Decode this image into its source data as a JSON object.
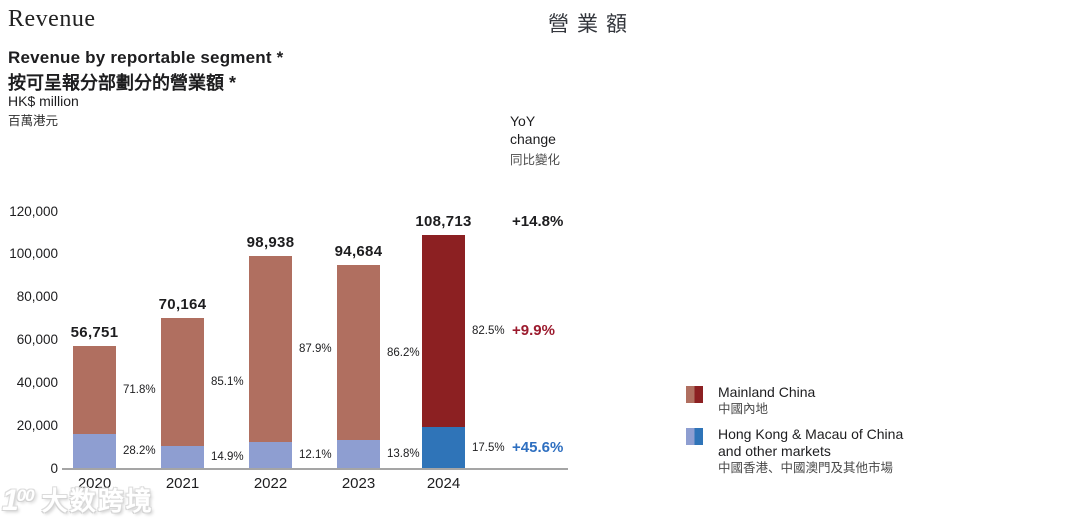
{
  "header": {
    "title_en": "Revenue",
    "title_zh": "營業額"
  },
  "chart_header": {
    "title_en": "Revenue by reportable segment *",
    "title_zh": "按可呈報分部劃分的營業額 *",
    "unit_en": "HK$ million",
    "unit_zh": "百萬港元"
  },
  "yoy_header": {
    "en_line1": "YoY",
    "en_line2": "change",
    "zh": "同比變化"
  },
  "chart_data": {
    "type": "bar",
    "stacked": true,
    "title": "Revenue by reportable segment *",
    "unit": "HK$ million",
    "categories": [
      "2020",
      "2021",
      "2022",
      "2023",
      "2024"
    ],
    "totals": [
      56751,
      70164,
      98938,
      94684,
      108713
    ],
    "total_labels": [
      "56,751",
      "70,164",
      "98,938",
      "94,684",
      "108,713"
    ],
    "ylim": [
      0,
      120000
    ],
    "grid": false,
    "legend_position": "right",
    "yticks": [
      {
        "value": 0,
        "label": "0"
      },
      {
        "value": 20000,
        "label": "20,000"
      },
      {
        "value": 40000,
        "label": "40,000"
      },
      {
        "value": 60000,
        "label": "60,000"
      },
      {
        "value": 80000,
        "label": "80,000"
      },
      {
        "value": 100000,
        "label": "100,000"
      },
      {
        "value": 120000,
        "label": "120,000"
      }
    ],
    "series": [
      {
        "name_en": "Mainland China",
        "name_zh": "中國內地",
        "stack_position": "top",
        "percents": [
          71.8,
          85.1,
          87.9,
          86.2,
          82.5
        ],
        "percent_labels": [
          "71.8%",
          "85.1%",
          "87.9%",
          "86.2%",
          "82.5%"
        ],
        "color_past": "#b06f60",
        "color_current": "#8c2022",
        "yoy_label": "+9.9%",
        "yoy_color": "#9c1b2e"
      },
      {
        "name_en_line1": "Hong Kong & Macau of China",
        "name_en_line2": "and other markets",
        "name_zh": "中國香港、中國澳門及其他市場",
        "stack_position": "bottom",
        "percents": [
          28.2,
          14.9,
          12.1,
          13.8,
          17.5
        ],
        "percent_labels": [
          "28.2%",
          "14.9%",
          "12.1%",
          "13.8%",
          "17.5%"
        ],
        "color_past": "#8e9ed1",
        "color_current": "#2f74b8",
        "yoy_label": "+45.6%",
        "yoy_color": "#2e6fc0"
      }
    ],
    "total_yoy_label": "+14.8%",
    "total_yoy_color": "#1d1d1f"
  },
  "watermark": {
    "logo_main": "1",
    "logo_sup": "00",
    "text": "大数跨境"
  }
}
